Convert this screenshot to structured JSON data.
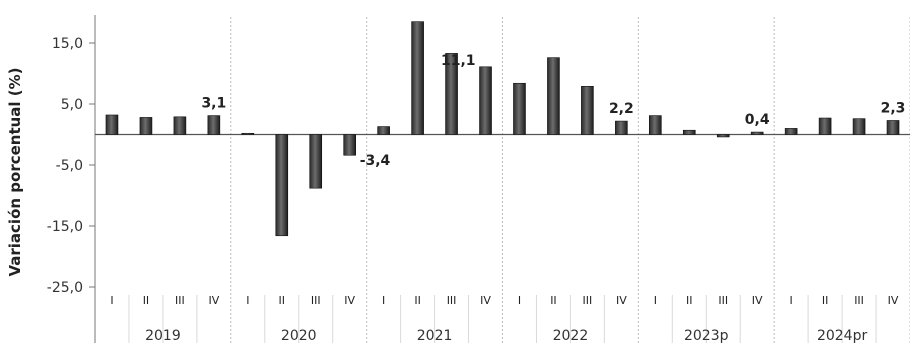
{
  "chart_data": {
    "type": "bar",
    "title": "",
    "xlabel": "",
    "ylabel": "Variación porcentual  (%)",
    "ylim": [
      -25,
      20
    ],
    "yticks": [
      15,
      5,
      -5,
      -15,
      -25
    ],
    "ytick_labels": [
      "15,0",
      "5,0",
      "-5,0",
      "-15,0",
      "-25,0"
    ],
    "grid": false,
    "years": [
      "2019",
      "2020",
      "2021",
      "2022",
      "2023p",
      "2024pr"
    ],
    "quarters": [
      "I",
      "II",
      "III",
      "IV"
    ],
    "categories": [
      "2019 I",
      "2019 II",
      "2019 III",
      "2019 IV",
      "2020 I",
      "2020 II",
      "2020 III",
      "2020 IV",
      "2021 I",
      "2021 II",
      "2021 III",
      "2021 IV",
      "2022 I",
      "2022 II",
      "2022 III",
      "2022 IV",
      "2023p I",
      "2023p II",
      "2023p III",
      "2023p IV",
      "2024pr I",
      "2024pr II",
      "2024pr III",
      "2024pr IV"
    ],
    "values": [
      3.2,
      2.8,
      2.9,
      3.1,
      0.2,
      -16.6,
      -8.8,
      -3.4,
      1.3,
      18.5,
      13.3,
      11.1,
      8.4,
      12.6,
      7.9,
      2.2,
      3.1,
      0.7,
      -0.4,
      0.4,
      1.0,
      2.7,
      2.6,
      2.3
    ],
    "data_labels": [
      {
        "category": "2019 IV",
        "text": "3,1"
      },
      {
        "category": "2020 IV",
        "text": "-3,4"
      },
      {
        "category": "2021 IV",
        "text": "11,1"
      },
      {
        "category": "2022 IV",
        "text": "2,2"
      },
      {
        "category": "2023p IV",
        "text": "0,4"
      },
      {
        "category": "2024pr IV",
        "text": "2,3"
      }
    ]
  }
}
